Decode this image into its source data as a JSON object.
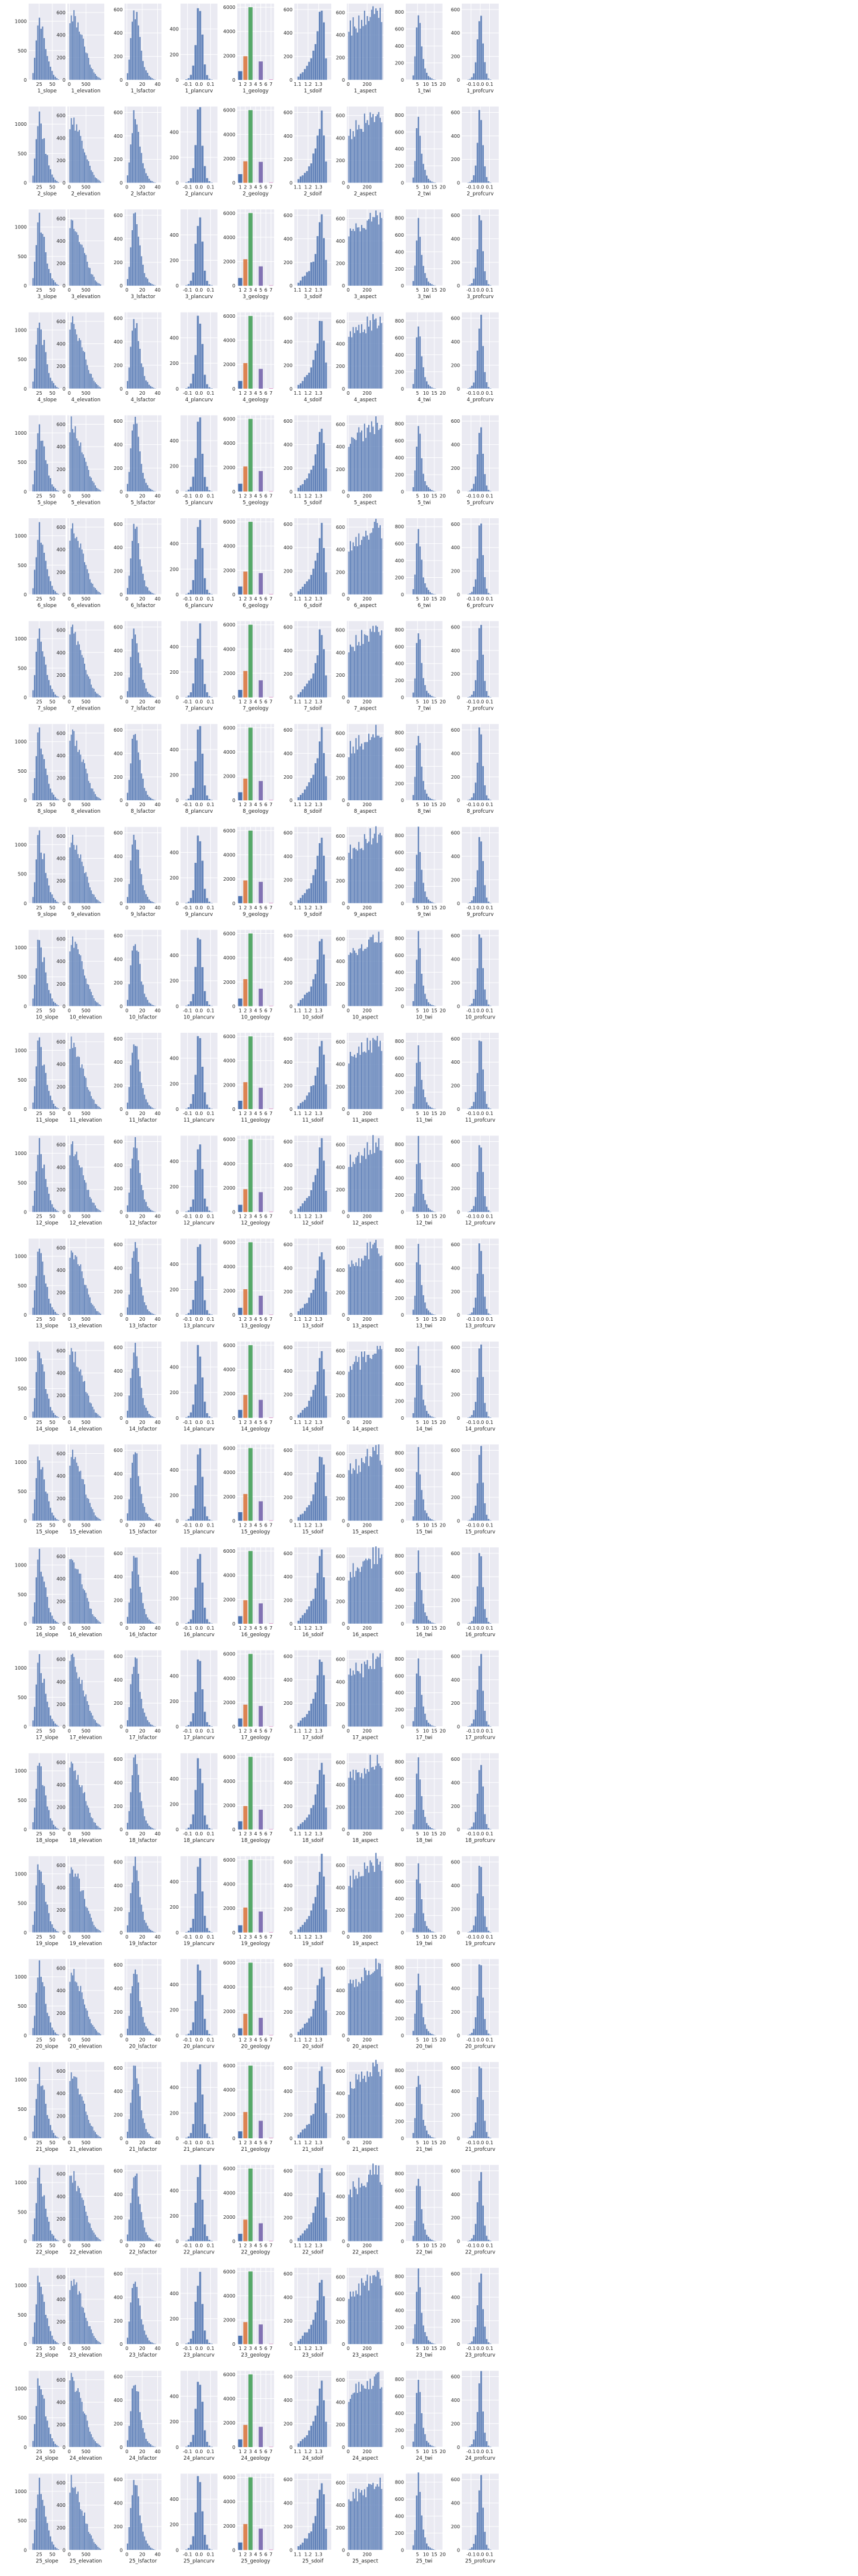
{
  "figure": {
    "panel_style": {
      "background": "#eaeaf2",
      "grid": "#ffffff",
      "bar": "#4c72b0",
      "text": "#222222"
    },
    "geology_colors": {
      "1": "#4c72b0",
      "2": "#dd8452",
      "3": "#55a868",
      "4": "#c44e52",
      "5": "#8172b3",
      "6": "#937860",
      "7": "#da8bc3"
    }
  },
  "chart_data": {
    "type": "bar",
    "description_of_grid": "25 rows x 9 histogram panels",
    "rows": 25,
    "variables": [
      "slope",
      "elevation",
      "lsfactor",
      "plancurv",
      "geology",
      "sdoif",
      "aspect",
      "twi",
      "profcurv"
    ],
    "xlabels": {
      "slope": [
        "1_slope",
        "2_slope",
        "3_slope",
        "4_slope",
        "5_slope",
        "6_slope",
        "7_slope",
        "8_slope",
        "9_slope",
        "10_slope",
        "11_slope",
        "12_slope",
        "13_slope",
        "14_slope",
        "15_slope",
        "16_slope",
        "17_slope",
        "18_slope",
        "19_slope",
        "20_slope",
        "21_slope",
        "22_slope",
        "23_slope",
        "24_slope",
        "25_slope"
      ],
      "elevation": [
        "1_elevation",
        "2_elevation",
        "3_elevation",
        "4_elevation",
        "5_elevation",
        "6_elevation",
        "7_elevation",
        "8_elevation",
        "9_elevation",
        "10_elevation",
        "11_elevation",
        "12_elevation",
        "13_elevation",
        "14_elevation",
        "15_elevation",
        "16_elevation",
        "17_elevation",
        "18_elevation",
        "19_elevation",
        "20_elevation",
        "21_elevation",
        "22_elevation",
        "23_elevation",
        "24_elevation",
        "25_elevation"
      ],
      "lsfactor": [
        "1_lsfactor",
        "2_lsfactor",
        "3_lsfactor",
        "4_lsfactor",
        "5_lsfactor",
        "6_lsfactor",
        "7_lsfactor",
        "8_lsfactor",
        "9_lsfactor",
        "10_lsfactor",
        "11_lsfactor",
        "12_lsfactor",
        "13_lsfactor",
        "14_lsfactor",
        "15_lsfactor",
        "16_lsfactor",
        "17_lsfactor",
        "18_lsfactor",
        "19_lsfactor",
        "20_lsfactor",
        "21_lsfactor",
        "22_lsfactor",
        "23_lsfactor",
        "24_lsfactor",
        "25_lsfactor"
      ],
      "plancurv": [
        "1_plancurv",
        "2_plancurv",
        "3_plancurv",
        "4_plancurv",
        "5_plancurv",
        "6_plancurv",
        "7_plancurv",
        "8_plancurv",
        "9_plancurv",
        "10_plancurv",
        "11_plancurv",
        "12_plancurv",
        "13_plancurv",
        "14_plancurv",
        "15_plancurv",
        "16_plancurv",
        "17_plancurv",
        "18_plancurv",
        "19_plancurv",
        "20_plancurv",
        "21_plancurv",
        "22_plancurv",
        "23_plancurv",
        "24_plancurv",
        "25_plancurv"
      ],
      "geology": [
        "1_geology",
        "2_geology",
        "3_geology",
        "4_geology",
        "5_geology",
        "6_geology",
        "7_geology",
        "8_geology",
        "9_geology",
        "10_geology",
        "11_geology",
        "12_geology",
        "13_geology",
        "14_geology",
        "15_geology",
        "16_geology",
        "17_geology",
        "18_geology",
        "19_geology",
        "20_geology",
        "21_geology",
        "22_geology",
        "23_geology",
        "24_geology",
        "25_geology"
      ],
      "sdoif": [
        "1_sdoif",
        "2_sdoif",
        "3_sdoif",
        "4_sdoif",
        "5_sdoif",
        "6_sdoif",
        "7_sdoif",
        "8_sdoif",
        "9_sdoif",
        "10_sdoif",
        "11_sdoif",
        "12_sdoif",
        "13_sdoif",
        "14_sdoif",
        "15_sdoif",
        "16_sdoif",
        "17_sdoif",
        "18_sdoif",
        "19_sdoif",
        "20_sdoif",
        "21_sdoif",
        "22_sdoif",
        "23_sdoif",
        "24_sdoif",
        "25_sdoif"
      ],
      "aspect": [
        "1_aspect",
        "2_aspect",
        "3_aspect",
        "4_aspect",
        "5_aspect",
        "6_aspect",
        "7_aspect",
        "8_aspect",
        "9_aspect",
        "10_aspect",
        "11_aspect",
        "12_aspect",
        "13_aspect",
        "14_aspect",
        "15_aspect",
        "16_aspect",
        "17_aspect",
        "18_aspect",
        "19_aspect",
        "20_aspect",
        "21_aspect",
        "22_aspect",
        "23_aspect",
        "24_aspect",
        "25_aspect"
      ],
      "twi": [
        "1_twi",
        "2_twi",
        "3_twi",
        "4_twi",
        "5_twi",
        "6_twi",
        "7_twi",
        "8_twi",
        "9_twi",
        "10_twi",
        "11_twi",
        "12_twi",
        "13_twi",
        "14_twi",
        "15_twi",
        "16_twi",
        "17_twi",
        "18_twi",
        "19_twi",
        "20_twi",
        "21_twi",
        "22_twi",
        "23_twi",
        "24_twi",
        "25_twi"
      ],
      "profcurv": [
        "1_profcurv",
        "2_profcurv",
        "3_profcurv",
        "4_profcurv",
        "5_profcurv",
        "6_profcurv",
        "7_profcurv",
        "8_profcurv",
        "9_profcurv",
        "10_profcurv",
        "11_profcurv",
        "12_profcurv",
        "13_profcurv",
        "14_profcurv",
        "15_profcurv",
        "16_profcurv",
        "17_profcurv",
        "18_profcurv",
        "19_profcurv",
        "20_profcurv",
        "21_profcurv",
        "22_profcurv",
        "23_profcurv",
        "24_profcurv",
        "25_profcurv"
      ]
    },
    "axes": {
      "slope": {
        "xlim": [
          5,
          75
        ],
        "xticks": [
          "25",
          "50"
        ],
        "xtick_values": [
          25,
          50
        ],
        "ylim": [
          0,
          1300
        ],
        "yticks": [
          "0",
          "500",
          "1000"
        ],
        "ytick_values": [
          0,
          500,
          1000
        ]
      },
      "elevation": {
        "xlim": [
          -60,
          1050
        ],
        "xticks": [
          "0",
          "500"
        ],
        "xtick_values": [
          0,
          500
        ],
        "ylim": [
          0,
          680
        ],
        "yticks": [
          "0",
          "200",
          "400",
          "600"
        ],
        "ytick_values": [
          0,
          200,
          400,
          600
        ]
      },
      "lsfactor": {
        "xlim": [
          -3,
          45
        ],
        "xticks": [
          "0",
          "20",
          "40"
        ],
        "xtick_values": [
          0,
          20,
          40
        ],
        "ylim": [
          0,
          650
        ],
        "yticks": [
          "0",
          "200",
          "400",
          "600"
        ],
        "ytick_values": [
          0,
          200,
          400,
          600
        ]
      },
      "plancurv": {
        "xlim": [
          -0.16,
          0.16
        ],
        "xticks": [
          "-0.1",
          "0.0",
          "0.1"
        ],
        "xtick_values": [
          -0.1,
          0,
          0.1
        ],
        "ylim": [
          0,
          600
        ],
        "yticks": [
          "0",
          "200",
          "400"
        ],
        "ytick_values": [
          0,
          200,
          400
        ]
      },
      "geology": {
        "xlim": [
          0.4,
          7.6
        ],
        "xticks": [
          "1",
          "2",
          "3",
          "4",
          "5",
          "6",
          "7"
        ],
        "xtick_values": [
          1,
          2,
          3,
          4,
          5,
          6,
          7
        ],
        "ylim": [
          0,
          6300
        ],
        "yticks": [
          "0",
          "2000",
          "4000",
          "6000"
        ],
        "ytick_values": [
          0,
          2000,
          4000,
          6000
        ]
      },
      "sdoif": {
        "xlim": [
          1.07,
          1.42
        ],
        "xticks": [
          "1.1",
          "1.2",
          "1.3"
        ],
        "xtick_values": [
          1.1,
          1.2,
          1.3
        ],
        "ylim": [
          0,
          650
        ],
        "yticks": [
          "0",
          "200",
          "400",
          "600"
        ],
        "ytick_values": [
          0,
          200,
          400,
          600
        ]
      },
      "aspect": {
        "xlim": [
          -15,
          375
        ],
        "xticks": [
          "0",
          "200"
        ],
        "xtick_values": [
          0,
          200
        ],
        "ylim": [
          0,
          680
        ],
        "yticks": [
          "0",
          "200",
          "400",
          "600"
        ],
        "ytick_values": [
          0,
          200,
          400,
          600
        ]
      },
      "twi": {
        "xlim": [
          -2,
          20
        ],
        "xticks": [
          "5",
          "10",
          "15",
          "20"
        ],
        "xtick_values": [
          5,
          10,
          15,
          20
        ],
        "ylim": [
          0,
          900
        ],
        "yticks": [
          "0",
          "200",
          "400",
          "600",
          "800"
        ],
        "ytick_values": [
          0,
          200,
          400,
          600,
          800
        ]
      },
      "profcurv": {
        "xlim": [
          -0.2,
          0.2
        ],
        "xticks": [
          "-0.1",
          "0.0",
          "0.1"
        ],
        "xtick_values": [
          -0.1,
          0,
          0.1
        ],
        "ylim": [
          0,
          650
        ],
        "yticks": [
          "0",
          "200",
          "400",
          "600"
        ],
        "ytick_values": [
          0,
          200,
          400,
          600
        ]
      }
    },
    "histograms": {
      "slope": {
        "bin_edges": [
          12,
          15,
          18,
          21,
          24,
          27,
          30,
          33,
          36,
          39,
          42,
          45,
          48,
          51,
          54,
          57,
          60,
          63
        ],
        "counts": [
          120,
          380,
          720,
          1050,
          1150,
          980,
          820,
          760,
          560,
          430,
          300,
          210,
          140,
          90,
          55,
          30,
          15
        ]
      },
      "elevation": {
        "bin_edges": [
          0,
          40,
          80,
          120,
          160,
          200,
          240,
          280,
          320,
          360,
          400,
          440,
          480,
          520,
          560,
          600,
          640,
          680,
          720,
          760,
          800,
          840,
          880,
          920,
          960
        ],
        "counts": [
          540,
          600,
          590,
          560,
          530,
          500,
          470,
          440,
          410,
          380,
          340,
          300,
          260,
          220,
          180,
          150,
          120,
          95,
          75,
          55,
          40,
          30,
          20,
          12
        ]
      },
      "lsfactor": {
        "bin_edges": [
          0,
          2,
          4,
          6,
          8,
          10,
          12,
          14,
          16,
          18,
          20,
          22,
          24,
          26,
          28,
          30,
          32,
          34,
          36,
          38
        ],
        "counts": [
          60,
          180,
          340,
          470,
          560,
          580,
          520,
          430,
          330,
          240,
          170,
          120,
          80,
          55,
          35,
          22,
          14,
          8,
          4
        ]
      },
      "plancurv": {
        "bin_edges": [
          -0.12,
          -0.1,
          -0.08,
          -0.06,
          -0.04,
          -0.02,
          0,
          0.02,
          0.04,
          0.06,
          0.08,
          0.1,
          0.12
        ],
        "counts": [
          5,
          15,
          40,
          110,
          300,
          520,
          540,
          330,
          120,
          40,
          12,
          4
        ]
      },
      "geology": {
        "categories": [
          "1",
          "2",
          "3",
          "4",
          "5",
          "6",
          "7"
        ],
        "values": [
          650,
          2000,
          6000,
          0,
          1600,
          0,
          40
        ]
      },
      "sdoif": {
        "bin_edges": [
          1.1,
          1.12,
          1.14,
          1.16,
          1.18,
          1.2,
          1.22,
          1.24,
          1.26,
          1.28,
          1.3,
          1.32,
          1.34,
          1.36,
          1.38
        ],
        "counts": [
          30,
          50,
          70,
          90,
          110,
          140,
          180,
          230,
          300,
          400,
          520,
          600,
          450,
          200
        ]
      },
      "aspect": {
        "bin_edges": [
          0,
          15,
          30,
          45,
          60,
          75,
          90,
          105,
          120,
          135,
          150,
          165,
          180,
          195,
          210,
          225,
          240,
          255,
          270,
          285,
          300,
          315,
          330,
          345,
          360
        ],
        "counts": [
          420,
          480,
          440,
          500,
          460,
          520,
          470,
          530,
          480,
          540,
          500,
          560,
          520,
          580,
          540,
          600,
          560,
          620,
          580,
          640,
          600,
          620,
          590,
          560
        ]
      },
      "twi": {
        "bin_edges": [
          2,
          3,
          4,
          5,
          6,
          7,
          8,
          9,
          10,
          11,
          12,
          13,
          14,
          15,
          16
        ],
        "counts": [
          60,
          250,
          600,
          820,
          620,
          380,
          230,
          140,
          85,
          50,
          30,
          18,
          10,
          5
        ]
      },
      "profcurv": {
        "bin_edges": [
          -0.14,
          -0.12,
          -0.1,
          -0.08,
          -0.06,
          -0.04,
          -0.02,
          0,
          0.02,
          0.04,
          0.06,
          0.08,
          0.1,
          0.12
        ],
        "counts": [
          4,
          10,
          25,
          60,
          140,
          320,
          560,
          580,
          330,
          140,
          50,
          15,
          5
        ]
      }
    }
  }
}
